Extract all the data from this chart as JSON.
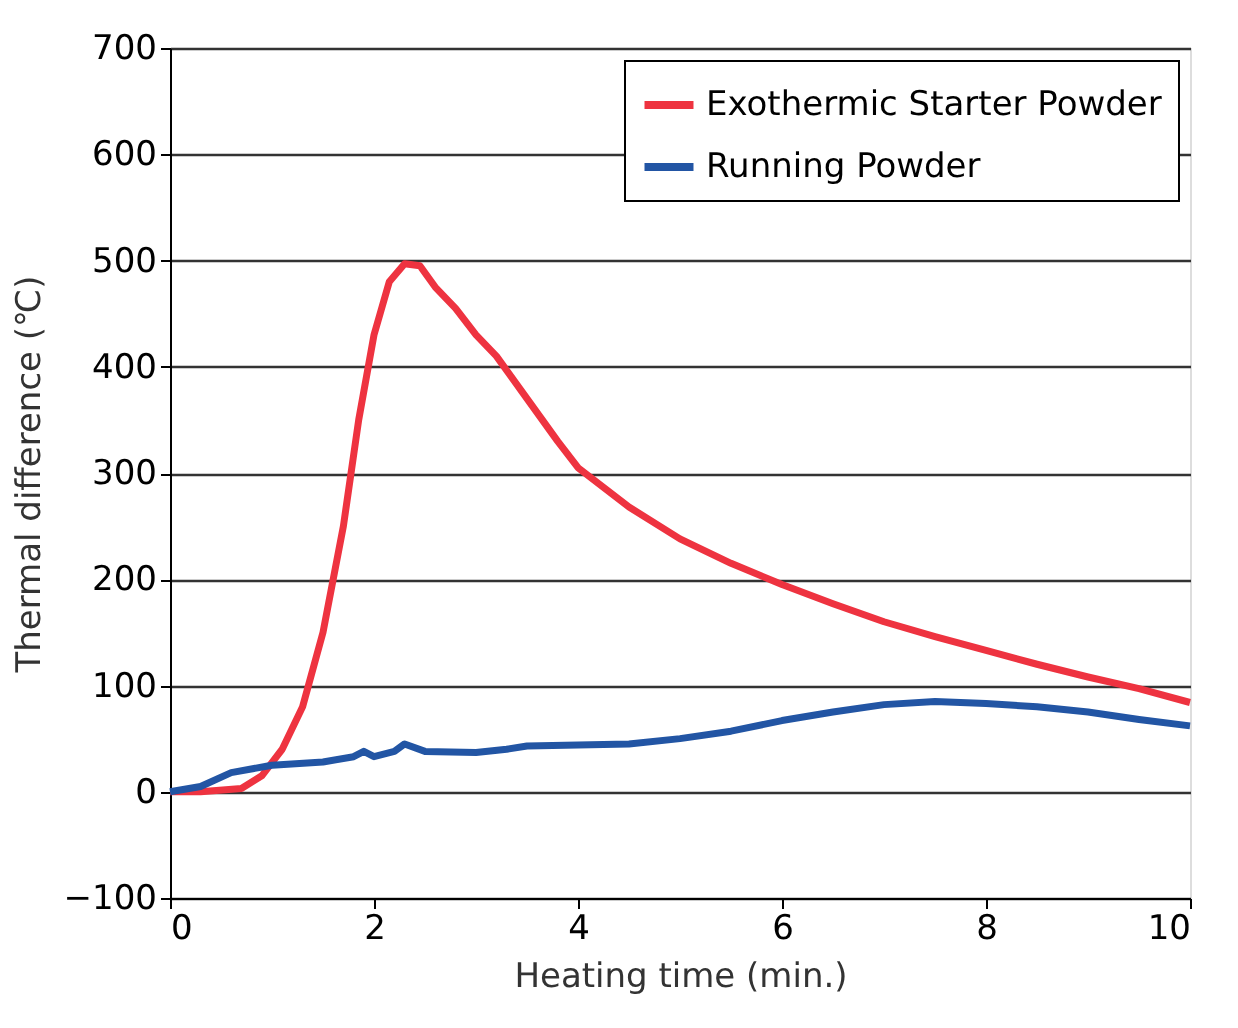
{
  "chart_data": {
    "type": "line",
    "xlabel": "Heating time (min.)",
    "ylabel": "Thermal difference (℃)",
    "xlim": [
      0,
      10
    ],
    "xticks": [
      0,
      2,
      4,
      6,
      8,
      10
    ],
    "ylim": [
      -100,
      700
    ],
    "yticks": [
      -100,
      0,
      100,
      200,
      300,
      400,
      500,
      600,
      700
    ],
    "grid": "y",
    "legend": "top right",
    "marker": "none",
    "line_style": "solid",
    "series": [
      {
        "name": "Exothermic Starter Powder",
        "color": "#ee3340",
        "x": [
          0,
          0.3,
          0.7,
          0.9,
          1.1,
          1.3,
          1.5,
          1.7,
          1.85,
          2.0,
          2.15,
          2.3,
          2.45,
          2.6,
          2.8,
          3.0,
          3.2,
          3.5,
          3.8,
          4.0,
          4.5,
          5.0,
          5.5,
          6.0,
          6.5,
          7.0,
          7.5,
          8.0,
          8.5,
          9.0,
          9.5,
          10
        ],
        "values": [
          0,
          0,
          3,
          15,
          40,
          80,
          150,
          250,
          350,
          430,
          480,
          497,
          495,
          475,
          455,
          430,
          410,
          370,
          330,
          305,
          268,
          238,
          215,
          195,
          177,
          160,
          146,
          133,
          120,
          108,
          97,
          84
        ]
      },
      {
        "name": "Running Powder",
        "color": "#2255a4",
        "x": [
          0,
          0.3,
          0.6,
          1.0,
          1.5,
          1.8,
          1.9,
          2.0,
          2.2,
          2.3,
          2.5,
          3.0,
          3.3,
          3.5,
          4.0,
          4.5,
          5.0,
          5.5,
          6.0,
          6.5,
          7.0,
          7.5,
          8.0,
          8.5,
          9.0,
          9.5,
          10
        ],
        "values": [
          0,
          5,
          18,
          25,
          28,
          33,
          38,
          33,
          38,
          45,
          38,
          37,
          40,
          43,
          44,
          45,
          50,
          57,
          67,
          75,
          82,
          85,
          83,
          80,
          75,
          68,
          62
        ]
      }
    ]
  }
}
